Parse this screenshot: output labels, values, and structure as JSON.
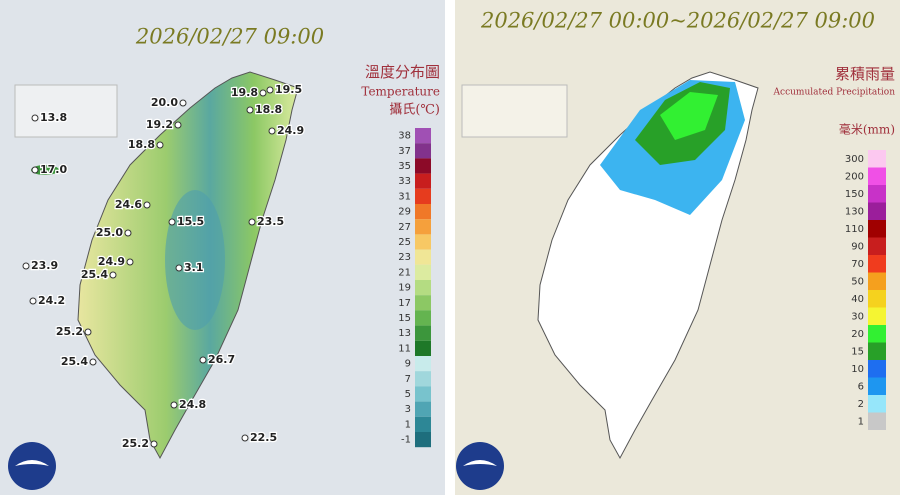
{
  "temperature_map": {
    "title": "2026/02/27 09:00",
    "legend_title": "溫度分布圖",
    "legend_subtitle": "Temperature",
    "unit": "攝氏(℃)",
    "scale": [
      38,
      37,
      35,
      33,
      31,
      29,
      27,
      25,
      23,
      21,
      19,
      17,
      15,
      13,
      11,
      9,
      7,
      5,
      3,
      1,
      -1
    ],
    "scale_colors": [
      "#a050b4",
      "#82328c",
      "#8c0a28",
      "#c81e1e",
      "#e63c1e",
      "#f07828",
      "#f5a03c",
      "#f7c864",
      "#f0e696",
      "#dceba0",
      "#b4dc82",
      "#8cc864",
      "#64b450",
      "#3c963c",
      "#1e7828",
      "#c8ebeb",
      "#a0d7dc",
      "#78c3cd",
      "#50a5b4",
      "#2d8796",
      "#1e6e7d"
    ],
    "stations": [
      13.8,
      {
        "value": 17,
        "label": "17.0"
      },
      {
        "value": 20,
        "label": "20.0"
      },
      19.8,
      19.5,
      18.8,
      19.2,
      24.9,
      18.8,
      24.6,
      23.5,
      15.5,
      {
        "value": 25,
        "label": "25.0"
      },
      24.9,
      23.9,
      25.4,
      3.1,
      24.2,
      25.2,
      25.4,
      26.7,
      24.8,
      25.2,
      22.5
    ]
  },
  "rainfall_map": {
    "title": "2026/02/27 00:00~2026/02/27 09:00",
    "legend_title": "累積雨量",
    "legend_subtitle": "Accumulated Precipitation",
    "unit": "毫米(mm)",
    "scale": [
      300,
      200,
      150,
      130,
      110,
      90,
      70,
      50,
      40,
      30,
      20,
      15,
      10,
      6,
      2,
      1
    ],
    "scale_colors": [
      "#fcc8f0",
      "#f050e6",
      "#c832c8",
      "#9b1e9b",
      "#a00000",
      "#c81e1e",
      "#f03c1e",
      "#f5a01e",
      "#f5d21e",
      "#f5f532",
      "#32f032",
      "#28a028",
      "#1e6ef0",
      "#1e96f0",
      "#96e6fa",
      "#c8c8c8"
    ]
  }
}
